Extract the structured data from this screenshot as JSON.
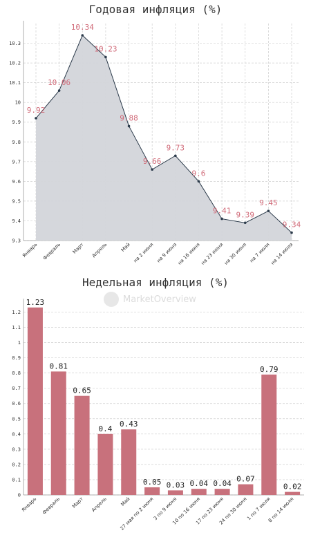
{
  "chart_data": [
    {
      "type": "area",
      "title": "Годовая инфляция (%)",
      "categories": [
        "Январь",
        "Февраль",
        "Март",
        "Апрель",
        "Май",
        "на 2 июня",
        "на 9 июня",
        "на 16 июня",
        "на 23 июня",
        "на 30 июня",
        "на 7 июля",
        "на 14 июля"
      ],
      "values": [
        9.92,
        10.06,
        10.34,
        10.23,
        9.88,
        9.66,
        9.73,
        9.6,
        9.41,
        9.39,
        9.45,
        9.34
      ],
      "value_labels": [
        "9.92",
        "10.06",
        "10.34",
        "10.23",
        "9.88",
        "9.66",
        "9.73",
        "9.6",
        "9.41",
        "9.39",
        "9.45",
        "9.34"
      ],
      "ylim": [
        9.3,
        10.4
      ],
      "yticks": [
        "9.3",
        "9.4",
        "9.5",
        "9.6",
        "9.7",
        "9.8",
        "9.9",
        "10",
        "10.1",
        "10.2",
        "10.3"
      ],
      "grid": true,
      "colors": {
        "fill": "#d3d5da",
        "line": "#2b3a4a",
        "label": "#d06a78"
      }
    },
    {
      "type": "bar",
      "title": "Недельная инфляция (%)",
      "categories": [
        "Январь",
        "Февраль",
        "Март",
        "Апрель",
        "Май",
        "27 мая по 2 июня",
        "3 по 9 июня",
        "10 по 16 июня",
        "17 по 23 июня",
        "24 по 30 июня",
        "1 по 7 июля",
        "8 по 14 июля"
      ],
      "values": [
        1.23,
        0.81,
        0.65,
        0.4,
        0.43,
        0.05,
        0.03,
        0.04,
        0.04,
        0.07,
        0.79,
        0.02
      ],
      "value_labels": [
        "1.23",
        "0.81",
        "0.65",
        "0.4",
        "0.43",
        "0.05",
        "0.03",
        "0.04",
        "0.04",
        "0.07",
        "0.79",
        "0.02"
      ],
      "ylim": [
        0,
        1.27
      ],
      "yticks": [
        "0",
        "0.1",
        "0.2",
        "0.3",
        "0.4",
        "0.5",
        "0.6",
        "0.7",
        "0.8",
        "0.9",
        "1",
        "1.1",
        "1.2"
      ],
      "grid": true,
      "colors": {
        "bar": "#c8717c"
      }
    }
  ],
  "watermark": {
    "text": "MarketOverview"
  }
}
